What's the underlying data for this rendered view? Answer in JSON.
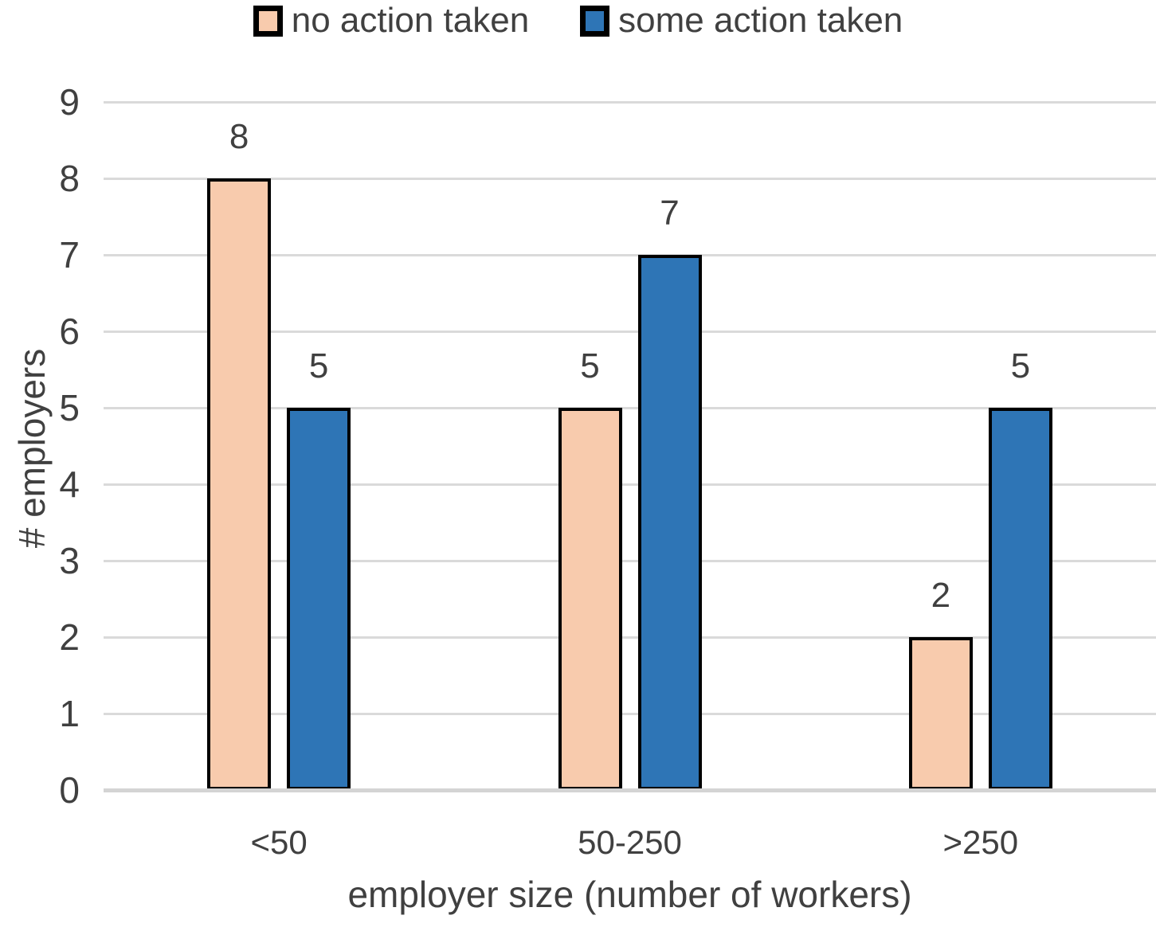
{
  "chart_data": {
    "type": "bar",
    "title": "",
    "categories": [
      "<50",
      "50-250",
      ">250"
    ],
    "series": [
      {
        "name": "no action taken",
        "values": [
          8,
          5,
          2
        ],
        "color": "#F8CBAD"
      },
      {
        "name": "some action taken",
        "values": [
          5,
          7,
          5
        ],
        "color": "#2E75B6"
      }
    ],
    "data_labels": {
      "no_action_taken": [
        8,
        5,
        2
      ],
      "some_action_taken": [
        5,
        7,
        5
      ]
    },
    "xlabel": "employer size (number of workers)",
    "ylabel": "# employers",
    "ylim": [
      0,
      9
    ],
    "y_ticks": [
      0,
      1,
      2,
      3,
      4,
      5,
      6,
      7,
      8,
      9
    ],
    "grid": true,
    "legend_position": "top",
    "colors": {
      "bar_border": "#000000",
      "gridline": "#DADADA",
      "axis_line": "#D4D4D4",
      "text": "#404040"
    }
  }
}
